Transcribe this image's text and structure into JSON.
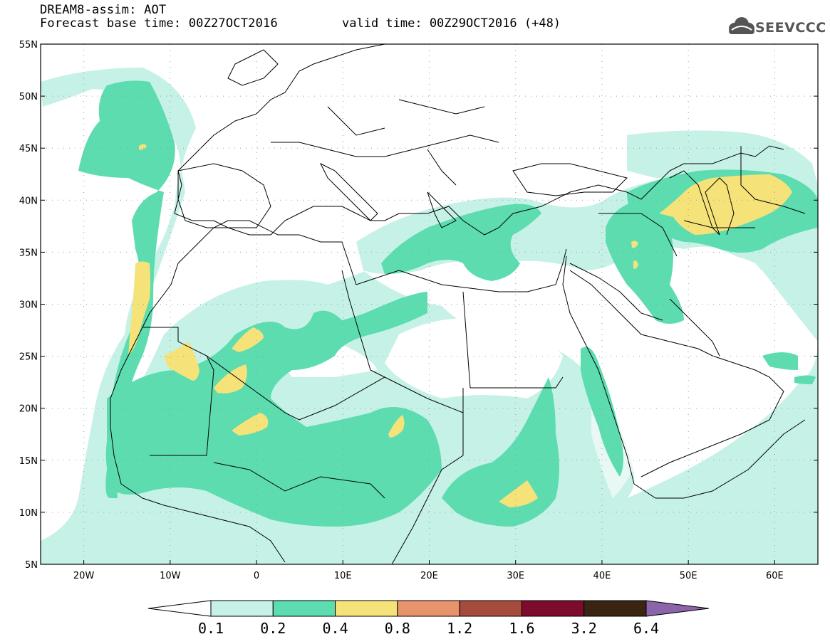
{
  "header": {
    "line1": "DREAM8-assim: AOT",
    "line2": "Forecast base time: 00Z27OCT2016",
    "valid": "valid time: 00Z29OCT2016 (+48)",
    "logo": "SEEVCCC"
  },
  "map": {
    "lon_range": [
      -25,
      65
    ],
    "lat_range": [
      5,
      55
    ],
    "lat_labels": [
      "5N",
      "10N",
      "15N",
      "20N",
      "25N",
      "30N",
      "35N",
      "40N",
      "45N",
      "50N",
      "55N"
    ],
    "lat_values": [
      5,
      10,
      15,
      20,
      25,
      30,
      35,
      40,
      45,
      50,
      55
    ],
    "lon_labels": [
      "20W",
      "10W",
      "0",
      "10E",
      "20E",
      "30E",
      "40E",
      "50E",
      "60E"
    ],
    "lon_values": [
      -20,
      -10,
      0,
      10,
      20,
      30,
      40,
      50,
      60
    ],
    "grid": "dotted"
  },
  "colorbar": {
    "labels": [
      "0.1",
      "0.2",
      "0.4",
      "0.8",
      "1.2",
      "1.6",
      "3.2",
      "6.4"
    ],
    "colors": [
      "#ffffff",
      "#c6f1e7",
      "#5ddcb0",
      "#f5e37a",
      "#e8936c",
      "#a64b3d",
      "#7c0b2c",
      "#3a2412",
      "#8b64a9"
    ]
  }
}
